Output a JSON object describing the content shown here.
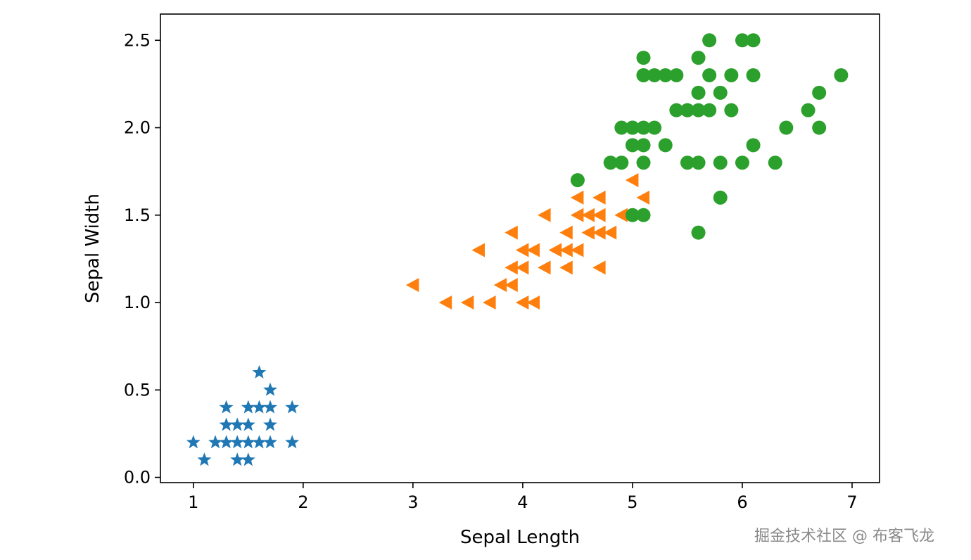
{
  "chart_data": {
    "type": "scatter",
    "title": "",
    "xlabel": "Sepal Length",
    "ylabel": "Sepal Width",
    "xlim": [
      0.7,
      7.25
    ],
    "ylim": [
      -0.03,
      2.65
    ],
    "xticks": [
      1,
      2,
      3,
      4,
      5,
      6,
      7
    ],
    "xtick_labels": [
      "1",
      "2",
      "3",
      "4",
      "5",
      "6",
      "7"
    ],
    "yticks": [
      0.0,
      0.5,
      1.0,
      1.5,
      2.0,
      2.5
    ],
    "ytick_labels": [
      "0.0",
      "0.5",
      "1.0",
      "1.5",
      "2.0",
      "2.5"
    ],
    "grid": false,
    "legend": false,
    "series": [
      {
        "marker": "star",
        "color": "#1f77b4",
        "x": [
          1.0,
          1.1,
          1.2,
          1.3,
          1.3,
          1.3,
          1.4,
          1.4,
          1.4,
          1.5,
          1.5,
          1.5,
          1.5,
          1.6,
          1.6,
          1.6,
          1.7,
          1.7,
          1.7,
          1.7,
          1.9,
          1.9
        ],
        "y": [
          0.2,
          0.1,
          0.2,
          0.2,
          0.3,
          0.4,
          0.1,
          0.2,
          0.3,
          0.1,
          0.2,
          0.3,
          0.4,
          0.2,
          0.4,
          0.6,
          0.2,
          0.3,
          0.4,
          0.5,
          0.2,
          0.4
        ]
      },
      {
        "marker": "triangle-left",
        "color": "#ff7f0e",
        "x": [
          3.0,
          3.3,
          3.5,
          3.6,
          3.7,
          3.8,
          3.9,
          3.9,
          3.9,
          4.0,
          4.0,
          4.0,
          4.1,
          4.1,
          4.2,
          4.2,
          4.3,
          4.4,
          4.4,
          4.4,
          4.5,
          4.5,
          4.5,
          4.6,
          4.6,
          4.7,
          4.7,
          4.7,
          4.7,
          4.8,
          4.9,
          5.0,
          5.1
        ],
        "y": [
          1.1,
          1.0,
          1.0,
          1.3,
          1.0,
          1.1,
          1.1,
          1.2,
          1.4,
          1.0,
          1.2,
          1.3,
          1.0,
          1.3,
          1.2,
          1.5,
          1.3,
          1.2,
          1.3,
          1.4,
          1.3,
          1.5,
          1.6,
          1.4,
          1.5,
          1.2,
          1.4,
          1.5,
          1.6,
          1.4,
          1.5,
          1.7,
          1.6
        ]
      },
      {
        "marker": "circle",
        "color": "#2ca02c",
        "x": [
          4.5,
          4.8,
          4.9,
          4.9,
          5.0,
          5.0,
          5.0,
          5.0,
          5.1,
          5.1,
          5.1,
          5.1,
          5.1,
          5.1,
          5.1,
          5.2,
          5.2,
          5.3,
          5.3,
          5.4,
          5.4,
          5.5,
          5.5,
          5.5,
          5.6,
          5.6,
          5.6,
          5.6,
          5.6,
          5.7,
          5.7,
          5.7,
          5.8,
          5.8,
          5.8,
          5.9,
          5.9,
          6.0,
          6.0,
          6.1,
          6.1,
          6.1,
          6.3,
          6.4,
          6.6,
          6.7,
          6.7,
          6.9
        ],
        "y": [
          1.7,
          1.8,
          1.8,
          2.0,
          1.5,
          1.9,
          2.0,
          2.0,
          1.5,
          1.8,
          1.9,
          2.0,
          2.3,
          2.3,
          2.4,
          2.0,
          2.3,
          1.9,
          2.3,
          2.1,
          2.3,
          1.8,
          2.1,
          2.1,
          1.4,
          1.8,
          2.2,
          2.4,
          2.1,
          2.1,
          2.3,
          2.5,
          1.6,
          1.8,
          2.2,
          2.1,
          2.3,
          1.8,
          2.5,
          1.9,
          2.3,
          2.5,
          1.8,
          2.0,
          2.1,
          2.0,
          2.2,
          2.3
        ]
      }
    ]
  },
  "watermark": {
    "text": "掘金技术社区 @ 布客飞龙"
  }
}
